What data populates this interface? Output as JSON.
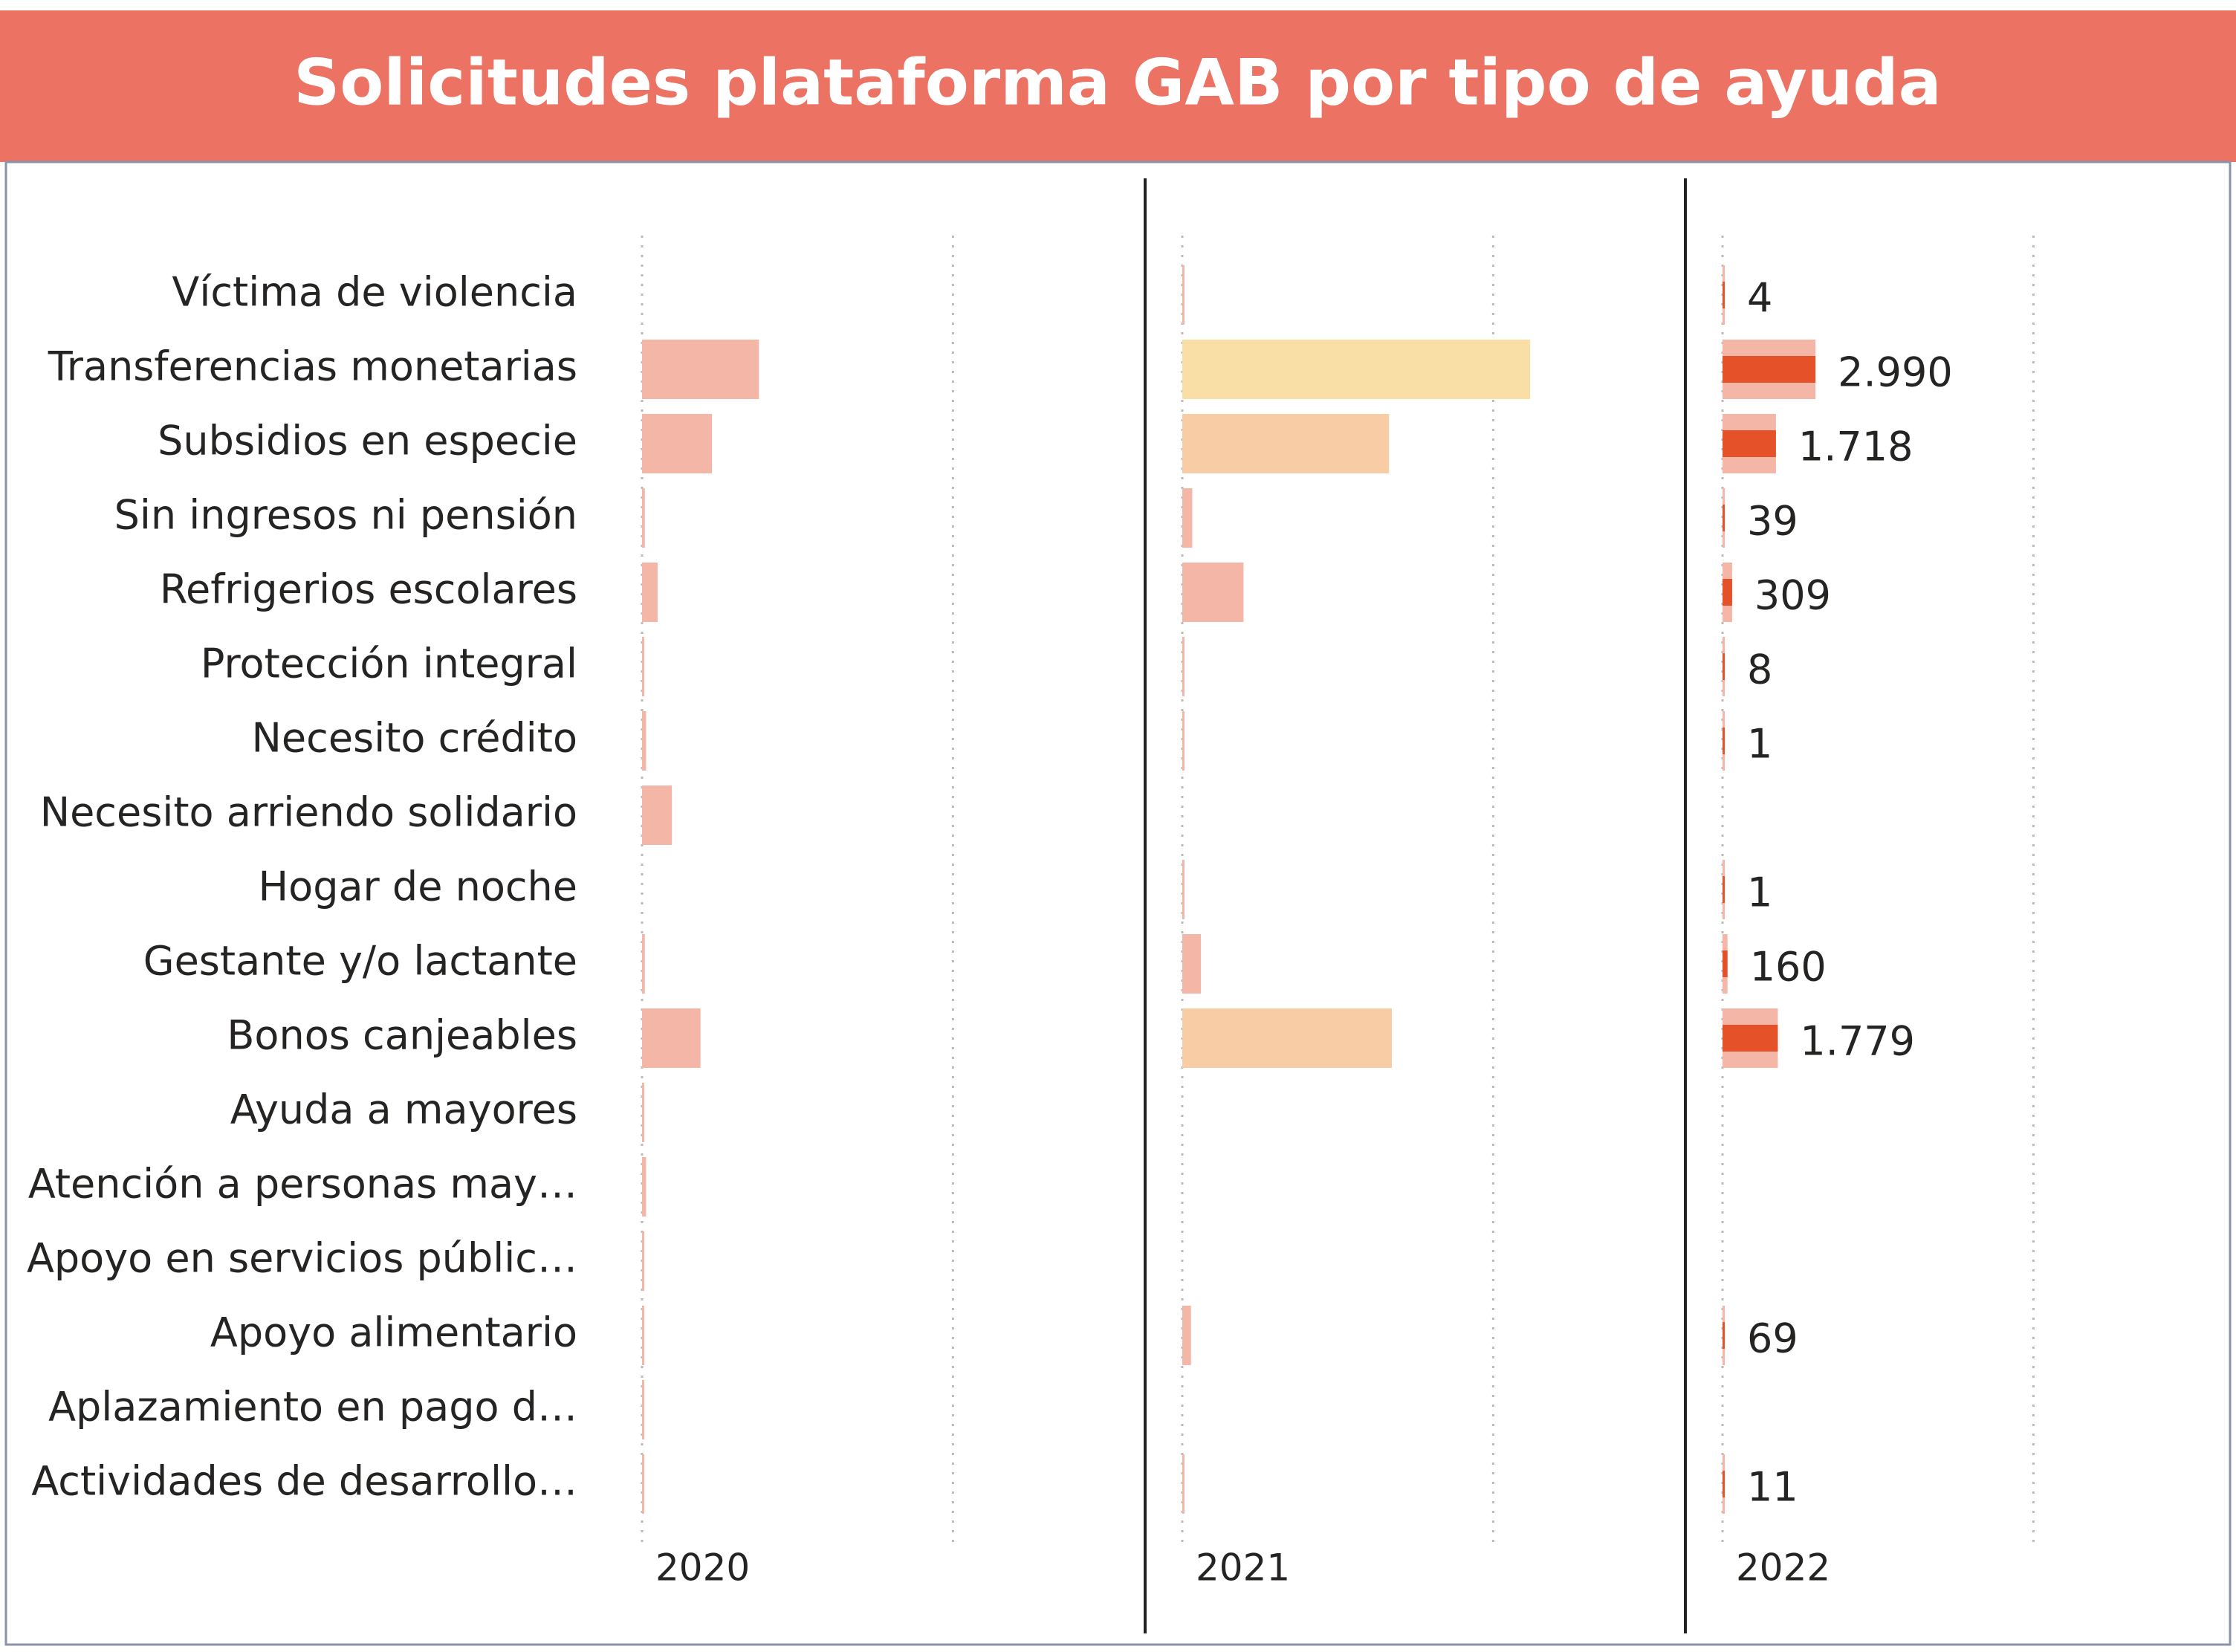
{
  "chart_data": {
    "type": "bar",
    "title": "Solicitudes plataforma GAB por tipo de ayuda",
    "categories": [
      "Víctima de violencia",
      "Transferencias monetarias",
      "Subsidios en especie",
      "Sin ingresos ni pensión",
      "Refrigerios escolares",
      "Protección integral",
      "Necesito crédito",
      "Necesito arriendo solidario",
      "Hogar de noche",
      "Gestante y/o lactante",
      "Bonos canjeables",
      "Ayuda a mayores",
      "Atención a personas may…",
      "Apoyo en servicios públic…",
      "Apoyo alimentario",
      "Aplazamiento en pago d…",
      "Actividades de desarrollo…"
    ],
    "series": [
      {
        "name": "2020",
        "color": "#f4b6a6",
        "values": [
          null,
          3760,
          2250,
          90,
          500,
          40,
          130,
          960,
          null,
          90,
          1880,
          40,
          130,
          40,
          40,
          40,
          40
        ]
      },
      {
        "name": "2021",
        "color": "#f4b6a6",
        "colors": [
          "#f4b6a6",
          "#f9dfa5",
          "#f8cca5",
          "#f4b6a6",
          "#f4b6a6",
          "#f4b6a6",
          "#f4b6a6",
          "#f4b6a6",
          "#f4b6a6",
          "#f4b6a6",
          "#f8cca5",
          "#f4b6a6",
          "#f4b6a6",
          "#f4b6a6",
          "#f4b6a6",
          "#f4b6a6",
          "#f4b6a6"
        ],
        "values": [
          40,
          11190,
          6650,
          320,
          1970,
          40,
          40,
          null,
          20,
          600,
          6740,
          null,
          null,
          null,
          280,
          null,
          40
        ]
      },
      {
        "name": "2022",
        "color": "#f4b6a6",
        "highlight_color": "#e5522a",
        "values": [
          4,
          2990,
          1718,
          39,
          309,
          8,
          1,
          null,
          1,
          160,
          1779,
          null,
          null,
          null,
          69,
          null,
          11
        ],
        "value_labels": [
          "4",
          "2.990",
          "1.718",
          "39",
          "309",
          "8",
          "1",
          null,
          "1",
          "160",
          "1.779",
          null,
          null,
          null,
          "69",
          null,
          "11"
        ]
      }
    ],
    "xlim": [
      0,
      17400
    ],
    "grid_values": [
      0,
      10000
    ]
  }
}
